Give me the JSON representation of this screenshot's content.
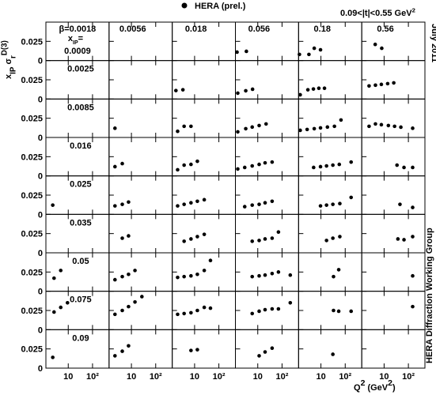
{
  "chart_data": {
    "type": "scatter",
    "series": [
      {
        "name": "HERA (prel.)",
        "color": "#000000"
      }
    ],
    "annotation": [
      "0.09<|t|<0.55 GeV",
      "2"
    ],
    "side_texts": [
      "July 2011",
      "HERA Diffraction Working Group"
    ],
    "ylabel": [
      "x",
      "IP",
      " σ",
      "r",
      "D(3)"
    ],
    "xlabel": [
      "Q",
      "2",
      " (GeV",
      "2",
      ")"
    ],
    "columns": [
      "β=0.0018",
      "0.0056",
      "0.018",
      "0.056",
      "0.18",
      "0.56"
    ],
    "row_header": [
      "x",
      "IP",
      "="
    ],
    "rows": [
      "0.0009",
      "0.0025",
      "0.0085",
      "0.016",
      "0.025",
      "0.035",
      "0.05",
      "0.075",
      "0.09"
    ],
    "xlog": true,
    "xlim": [
      1.2,
      480
    ],
    "xticks": [
      10,
      {
        "value": 100,
        "label": "10²"
      }
    ],
    "ylim": [
      0,
      0.05
    ],
    "yticks": [
      0,
      0.025
    ],
    "panels": [
      [
        {
          "x": [],
          "values": []
        },
        {
          "x": [],
          "values": []
        },
        {
          "x": [],
          "values": []
        },
        {
          "x": [
            1.4,
            3.4
          ],
          "values": [
            0.011,
            0.012
          ]
        },
        {
          "x": [
            1.3,
            3.2,
            5.3,
            9.6
          ],
          "values": [
            0.008,
            0.008,
            0.016,
            0.014
          ]
        },
        {
          "x": [
            4.3,
            8
          ],
          "values": [
            0.021,
            0.016
          ]
        }
      ],
      [
        {
          "x": [],
          "values": []
        },
        {
          "x": [],
          "values": []
        },
        {
          "x": [
            1.7,
            3.3
          ],
          "values": [
            0.011,
            0.012
          ]
        },
        {
          "x": [
            1.5,
            3.2,
            6.1
          ],
          "values": [
            0.0076,
            0.0107,
            0.0127
          ]
        },
        {
          "x": [
            1.4,
            2.9,
            4.9,
            8.2,
            14
          ],
          "values": [
            0.0055,
            0.012,
            0.013,
            0.014,
            0.014
          ]
        },
        {
          "x": [
            2.4,
            4.4,
            7.7,
            14,
            25
          ],
          "values": [
            0.017,
            0.018,
            0.019,
            0.02,
            0.021
          ]
        }
      ],
      [
        {
          "x": [],
          "values": []
        },
        {
          "x": [
            2.1
          ],
          "values": [
            0.012
          ]
        },
        {
          "x": [
            2,
            3.7,
            7.1
          ],
          "values": [
            0.008,
            0.0145,
            0.0145
          ]
        },
        {
          "x": [
            1.5,
            3.2,
            5.9,
            11.4,
            22
          ],
          "values": [
            0.0073,
            0.0114,
            0.0135,
            0.0155,
            0.0176
          ]
        },
        {
          "x": [
            1.4,
            2.7,
            5.3,
            9.6,
            18.5,
            36,
            67
          ],
          "values": [
            0.0093,
            0.0104,
            0.0114,
            0.0124,
            0.0135,
            0.0145,
            0.0227
          ]
        },
        {
          "x": [
            2.4,
            4.4,
            7.7,
            15,
            27,
            49,
            150
          ],
          "values": [
            0.0145,
            0.0176,
            0.0166,
            0.0155,
            0.0145,
            0.0134,
            0.012
          ]
        }
      ],
      [
        {
          "x": [],
          "values": []
        },
        {
          "x": [
            2.1,
            4.2
          ],
          "values": [
            0.012,
            0.016
          ]
        },
        {
          "x": [
            2,
            3.7,
            7.1,
            13
          ],
          "values": [
            0.008,
            0.014,
            0.015,
            0.019
          ]
        },
        {
          "x": [
            1.5,
            2.9,
            5.9,
            11.4,
            20,
            39
          ],
          "values": [
            0.009,
            0.011,
            0.013,
            0.015,
            0.017,
            0.018
          ]
        },
        {
          "x": [
            5,
            9.6,
            17,
            31,
            57,
            175
          ],
          "values": [
            0.011,
            0.012,
            0.013,
            0.014,
            0.015,
            0.018
          ]
        },
        {
          "x": [
            34,
            66,
            150
          ],
          "values": [
            0.014,
            0.011,
            0.011
          ]
        }
      ],
      [
        {
          "x": [
            2.3
          ],
          "values": [
            0.012
          ]
        },
        {
          "x": [
            2.1,
            4.2,
            7.6
          ],
          "values": [
            0.011,
            0.013,
            0.016
          ]
        },
        {
          "x": [
            2,
            3.7,
            7.1,
            13,
            25
          ],
          "values": [
            0.011,
            0.013,
            0.015,
            0.017,
            0.019
          ]
        },
        {
          "x": [
            2.9,
            5.9,
            11.4,
            20,
            39
          ],
          "values": [
            0.01,
            0.012,
            0.013,
            0.015,
            0.017
          ]
        },
        {
          "x": [
            9.6,
            17,
            31,
            60,
            175
          ],
          "values": [
            0.011,
            0.012,
            0.013,
            0.014,
            0.022
          ]
        },
        {
          "x": [
            45,
            150
          ],
          "values": [
            0.013,
            0.009
          ]
        }
      ],
      [
        {
          "x": [],
          "values": []
        },
        {
          "x": [
            4.2,
            7.6
          ],
          "values": [
            0.019,
            0.022
          ]
        },
        {
          "x": [
            3.7,
            7.1,
            13,
            25
          ],
          "values": [
            0.015,
            0.018,
            0.021,
            0.024
          ]
        },
        {
          "x": [
            5.9,
            11.4,
            20,
            39,
            71
          ],
          "values": [
            0.015,
            0.016,
            0.018,
            0.019,
            0.027
          ]
        },
        {
          "x": [
            17,
            31,
            60
          ],
          "values": [
            0.016,
            0.019,
            0.021
          ]
        },
        {
          "x": [
            37,
            66,
            150
          ],
          "values": [
            0.018,
            0.017,
            0.021
          ]
        }
      ],
      [
        {
          "x": [
            2.6,
            4.9
          ],
          "values": [
            0.017,
            0.027
          ]
        },
        {
          "x": [
            2.1,
            4.2,
            7.6,
            14
          ],
          "values": [
            0.015,
            0.019,
            0.022,
            0.027
          ]
        },
        {
          "x": [
            2,
            3.7,
            7.1,
            13,
            25,
            45
          ],
          "values": [
            0.018,
            0.019,
            0.02,
            0.022,
            0.027,
            0.04
          ]
        },
        {
          "x": [
            5.9,
            11.4,
            20,
            39,
            71,
            218
          ],
          "values": [
            0.019,
            0.02,
            0.021,
            0.023,
            0.025,
            0.021
          ]
        },
        {
          "x": [
            33,
            54
          ],
          "values": [
            0.019,
            0.028
          ]
        },
        {
          "x": [
            150
          ],
          "values": [
            0.02
          ]
        }
      ],
      [
        {
          "x": [
            2.6,
            4.9,
            9.3
          ],
          "values": [
            0.023,
            0.029,
            0.035
          ]
        },
        {
          "x": [
            2.1,
            4.2,
            7.6,
            14,
            27
          ],
          "values": [
            0.02,
            0.025,
            0.03,
            0.036,
            0.043
          ]
        },
        {
          "x": [
            2,
            3.7,
            7.1,
            13,
            25,
            45
          ],
          "values": [
            0.02,
            0.021,
            0.022,
            0.025,
            0.029,
            0.028
          ]
        },
        {
          "x": [
            5.9,
            11.4,
            20,
            39,
            71,
            218
          ],
          "values": [
            0.021,
            0.024,
            0.026,
            0.027,
            0.027,
            0.035
          ]
        },
        {
          "x": [
            33,
            54,
            175
          ],
          "values": [
            0.025,
            0.024,
            0.024
          ]
        },
        {
          "x": [
            150
          ],
          "values": [
            0.03
          ]
        }
      ],
      [
        {
          "x": [
            2.3
          ],
          "values": [
            0.014
          ]
        },
        {
          "x": [
            2.1,
            4.2,
            7.6
          ],
          "values": [
            0.016,
            0.022,
            0.029
          ]
        },
        {
          "x": [
            7.1,
            13
          ],
          "values": [
            0.023,
            0.024
          ]
        },
        {
          "x": [
            11.4,
            20,
            39
          ],
          "values": [
            0.016,
            0.021,
            0.026
          ]
        },
        {
          "x": [
            31
          ],
          "values": [
            0.018
          ]
        },
        {
          "x": [],
          "values": []
        }
      ]
    ]
  }
}
